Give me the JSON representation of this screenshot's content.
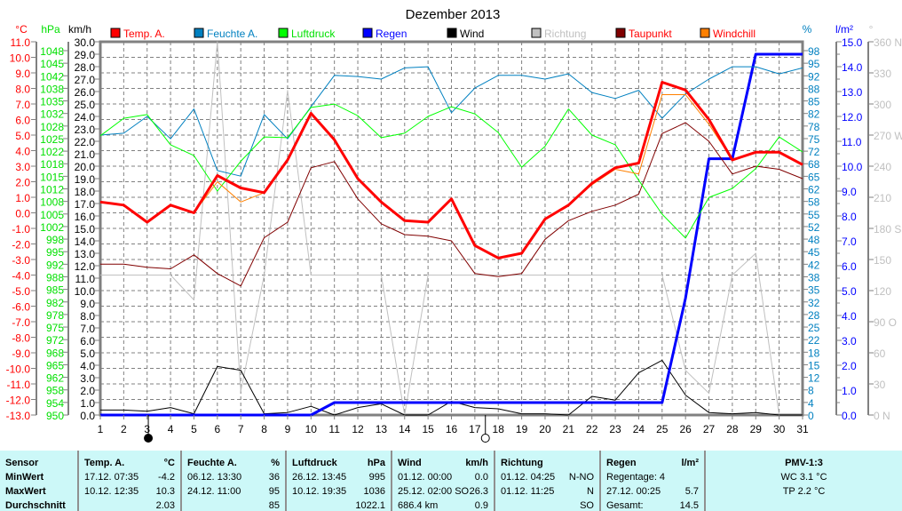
{
  "chart_data": {
    "type": "line",
    "title": "Dezember 2013",
    "x": [
      1,
      2,
      3,
      4,
      5,
      6,
      7,
      8,
      9,
      10,
      11,
      12,
      13,
      14,
      15,
      16,
      17,
      18,
      19,
      20,
      21,
      22,
      23,
      24,
      25,
      26,
      27,
      28,
      29,
      30,
      31
    ],
    "xlabel": "",
    "grid": true,
    "legend_position": "top",
    "axes": {
      "temp": {
        "unit": "°C",
        "ylim": [
          -13,
          11
        ],
        "labels": [
          "11.0",
          "10.0",
          "9.0",
          "8.0",
          "7.0",
          "6.0",
          "5.0",
          "4.0",
          "3.0",
          "2.0",
          "1.0",
          "0.0",
          "-1.0",
          "-2.0",
          "-3.0",
          "-4.0",
          "-5.0",
          "-6.0",
          "-7.0",
          "-8.0",
          "-9.0",
          "-10.0",
          "-11.0",
          "-12.0",
          "-13.0"
        ]
      },
      "pressure": {
        "unit": "hPa",
        "ylim": [
          950,
          1050
        ],
        "labels": [
          "1048",
          "1045",
          "1042",
          "1038",
          "1035",
          "1032",
          "1028",
          "1025",
          "1022",
          "1018",
          "1015",
          "1012",
          "1008",
          "1005",
          "1002",
          "998",
          "995",
          "992",
          "988",
          "985",
          "982",
          "978",
          "975",
          "972",
          "968",
          "965",
          "962",
          "958",
          "954",
          "950"
        ]
      },
      "wind": {
        "unit": "km/h",
        "ylim": [
          0,
          30
        ],
        "labels": [
          "30.0",
          "29.0",
          "28.0",
          "27.0",
          "26.0",
          "25.0",
          "24.0",
          "23.0",
          "22.0",
          "21.0",
          "20.0",
          "19.0",
          "18.0",
          "17.0",
          "16.0",
          "15.0",
          "14.0",
          "13.0",
          "12.0",
          "11.0",
          "10.0",
          "9.0",
          "8.0",
          "7.0",
          "6.0",
          "5.0",
          "4.0",
          "3.0",
          "2.0",
          "1.0",
          "0.0"
        ]
      },
      "humidity": {
        "unit": "%",
        "ylim": [
          0,
          100
        ],
        "labels": [
          "98",
          "95",
          "92",
          "88",
          "85",
          "82",
          "78",
          "75",
          "72",
          "68",
          "65",
          "62",
          "58",
          "55",
          "52",
          "48",
          "45",
          "42",
          "38",
          "35",
          "32",
          "28",
          "25",
          "22",
          "18",
          "15",
          "12",
          "8",
          "4",
          "0"
        ]
      },
      "rain": {
        "unit": "l/m²",
        "ylim": [
          0,
          15
        ],
        "labels": [
          "15.0",
          "14.0",
          "13.0",
          "12.0",
          "11.0",
          "10.0",
          "9.0",
          "8.0",
          "7.0",
          "6.0",
          "5.0",
          "4.0",
          "3.0",
          "2.0",
          "1.0",
          "0.0"
        ]
      },
      "direction": {
        "unit": "°",
        "ylim": [
          0,
          360
        ],
        "labels": [
          "360 N",
          "330",
          "300",
          "270 W",
          "240",
          "210",
          "180 S",
          "150",
          "120",
          "90  O",
          "60",
          "30",
          "0   N"
        ]
      }
    },
    "series": [
      {
        "key": "temp",
        "name": "Temp. A.",
        "axis": "temp",
        "color": "#ff0000",
        "width": 3,
        "values": [
          0.7,
          0.5,
          -0.6,
          0.5,
          0.0,
          2.4,
          1.6,
          1.3,
          3.4,
          6.4,
          4.7,
          2.2,
          0.7,
          -0.5,
          -0.6,
          0.9,
          -2.1,
          -2.9,
          -2.6,
          -0.4,
          0.5,
          1.9,
          2.9,
          3.2,
          8.4,
          7.9,
          6.0,
          3.4,
          3.9,
          3.9,
          3.1
        ]
      },
      {
        "key": "humidity",
        "name": "Feuchte A.",
        "axis": "humidity",
        "color": "#0080c0",
        "width": 1,
        "values": [
          75,
          75.5,
          80,
          74,
          82,
          65.5,
          64,
          80.5,
          74,
          82.6,
          91,
          90.7,
          90,
          93,
          93.3,
          81,
          87.6,
          91,
          91,
          90,
          91.4,
          86.4,
          84.8,
          87,
          79.5,
          86,
          90,
          93.3,
          93.3,
          91.4,
          93
        ]
      },
      {
        "key": "pressure",
        "name": "Luftdruck",
        "axis": "pressure",
        "color": "#00ff00",
        "width": 1,
        "values": [
          1024.8,
          1029.5,
          1030.5,
          1022.4,
          1019.5,
          1010,
          1018,
          1024.5,
          1024.3,
          1032.4,
          1033.3,
          1030.2,
          1024.3,
          1025.5,
          1030,
          1032.6,
          1030.7,
          1025.7,
          1016.4,
          1022,
          1032,
          1025,
          1022.4,
          1012.9,
          1003.8,
          997.4,
          1008.3,
          1010.7,
          1016,
          1024.5,
          1020.5
        ]
      },
      {
        "key": "rain",
        "name": "Regen",
        "axis": "rain",
        "color": "#0000ff",
        "width": 3,
        "values": [
          0,
          0,
          0,
          0,
          0,
          0,
          0,
          0,
          0,
          0,
          0.5,
          0.5,
          0.5,
          0.5,
          0.5,
          0.5,
          0.5,
          0.5,
          0.5,
          0.5,
          0.5,
          0.5,
          0.5,
          0.5,
          0.5,
          4.7,
          10.3,
          10.3,
          14.5,
          14.5,
          14.5
        ]
      },
      {
        "key": "wind",
        "name": "Wind",
        "axis": "wind",
        "color": "#000000",
        "width": 1,
        "values": [
          0.4,
          0.4,
          0.3,
          0.6,
          0.1,
          3.9,
          3.6,
          0.1,
          0.2,
          0.7,
          0,
          0.6,
          0.9,
          0,
          0,
          1.1,
          0.6,
          0.5,
          0.1,
          0.1,
          0,
          1.5,
          1.2,
          3.4,
          4.4,
          1.6,
          0.2,
          0.1,
          0.2,
          0,
          0
        ]
      },
      {
        "key": "direction",
        "name": "Richtung",
        "axis": "direction",
        "color": "#c0c0c0",
        "width": 1,
        "values": [
          135,
          135,
          135,
          135,
          111,
          360,
          23,
          135,
          313,
          135,
          135,
          135,
          135,
          0,
          135,
          135,
          135,
          135,
          135,
          135,
          135,
          135,
          135,
          135,
          135,
          43,
          21,
          135,
          156,
          0,
          0
        ]
      },
      {
        "key": "dewpoint",
        "name": "Taupunkt",
        "axis": "temp",
        "color": "#800000",
        "width": 1,
        "values": [
          -3.3,
          -3.3,
          -3.5,
          -3.6,
          -2.7,
          -3.9,
          -4.7,
          -1.6,
          -0.6,
          2.9,
          3.3,
          0.9,
          -0.7,
          -1.4,
          -1.5,
          -1.8,
          -3.9,
          -4.1,
          -3.9,
          -1.7,
          -0.5,
          0.1,
          0.5,
          1.2,
          5.1,
          5.8,
          4.6,
          2.5,
          3.0,
          2.8,
          2.2
        ]
      },
      {
        "key": "windchill",
        "name": "Windchill",
        "axis": "temp",
        "color": "#ff8000",
        "width": 1,
        "values": [
          0.7,
          0.5,
          -0.6,
          0.5,
          0.0,
          2.0,
          0.7,
          1.3,
          3.4,
          6.4,
          4.7,
          2.2,
          0.7,
          -0.5,
          -0.6,
          0.9,
          -2.1,
          -2.9,
          -2.6,
          -0.4,
          0.5,
          1.8,
          2.8,
          2.5,
          7.6,
          7.6,
          5.7,
          3.4,
          3.9,
          3.9,
          3.1
        ]
      }
    ],
    "legend_order": [
      "temp",
      "humidity",
      "pressure",
      "rain",
      "wind",
      "direction",
      "dewpoint",
      "windchill"
    ],
    "moon_phases": [
      {
        "day": 3.05,
        "phase": "new"
      },
      {
        "day": 17.45,
        "phase": "full"
      }
    ]
  },
  "table": {
    "row_labels": [
      "Sensor",
      "MinWert",
      "MaxWert",
      "Durchschnitt"
    ],
    "columns": [
      {
        "title": "Temp. A.",
        "unit": "°C",
        "rows": [
          [
            "17.12.  07:35",
            "-4.2"
          ],
          [
            "10.12.  12:35",
            "10.3"
          ],
          [
            "",
            "2.03"
          ]
        ]
      },
      {
        "title": "Feuchte A.",
        "unit": "%",
        "rows": [
          [
            "06.12.  13:30",
            "36"
          ],
          [
            "24.12.  11:00",
            "95"
          ],
          [
            "",
            "85"
          ]
        ]
      },
      {
        "title": "Luftdruck",
        "unit": "hPa",
        "rows": [
          [
            "26.12.  13:45",
            "995"
          ],
          [
            "10.12.  19:35",
            "1036"
          ],
          [
            "",
            "1022.1"
          ]
        ]
      },
      {
        "title": "Wind",
        "unit": "km/h",
        "rows": [
          [
            "01.12.  00:00",
            "0.0"
          ],
          [
            "25.12.  02:00 SO",
            "26.3"
          ],
          [
            "686.4 km",
            "0.9"
          ]
        ]
      },
      {
        "title": "Richtung",
        "unit": "",
        "rows": [
          [
            "01.12.  04:25",
            "N-NO"
          ],
          [
            "01.12.  11:25",
            "N"
          ],
          [
            "",
            "SO"
          ]
        ]
      },
      {
        "title": "Regen",
        "unit": "l/m²",
        "rows": [
          [
            "Regentage: 4",
            ""
          ],
          [
            "27.12.  00:25",
            "5.7"
          ],
          [
            "Gesamt:",
            "14.5"
          ]
        ]
      }
    ],
    "pmv": {
      "title": "PMV-1:3",
      "lines": [
        "WC 3.1 °C",
        "TP 2.2 °C"
      ]
    }
  }
}
